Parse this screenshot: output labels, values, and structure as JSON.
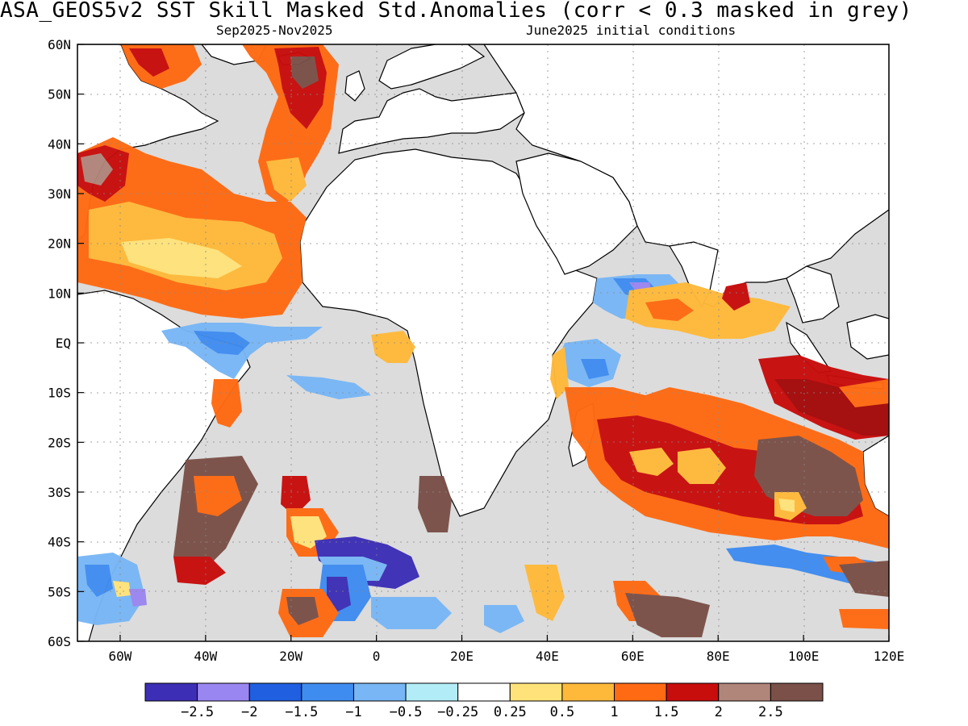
{
  "header": {
    "title": "ASA_GEOS5v2  SST Skill Masked Std.Anomalies (corr < 0.3 masked in grey)",
    "period": "Sep2025-Nov2025",
    "init": "June2025 initial conditions"
  },
  "map": {
    "lon_range": [
      -70,
      120
    ],
    "lat_range": [
      -60,
      60
    ],
    "lat_ticks": [
      {
        "value": 60,
        "label": "60N"
      },
      {
        "value": 50,
        "label": "50N"
      },
      {
        "value": 40,
        "label": "40N"
      },
      {
        "value": 30,
        "label": "30N"
      },
      {
        "value": 20,
        "label": "20N"
      },
      {
        "value": 10,
        "label": "10N"
      },
      {
        "value": 0,
        "label": "EQ"
      },
      {
        "value": -10,
        "label": "10S"
      },
      {
        "value": -20,
        "label": "20S"
      },
      {
        "value": -30,
        "label": "30S"
      },
      {
        "value": -40,
        "label": "40S"
      },
      {
        "value": -50,
        "label": "50S"
      },
      {
        "value": -60,
        "label": "60S"
      }
    ],
    "lon_ticks": [
      {
        "value": -60,
        "label": "60W"
      },
      {
        "value": -40,
        "label": "40W"
      },
      {
        "value": -20,
        "label": "20W"
      },
      {
        "value": 0,
        "label": "0"
      },
      {
        "value": 20,
        "label": "20E"
      },
      {
        "value": 40,
        "label": "40E"
      },
      {
        "value": 60,
        "label": "60E"
      },
      {
        "value": 80,
        "label": "80E"
      },
      {
        "value": 100,
        "label": "100E"
      },
      {
        "value": 120,
        "label": "120E"
      }
    ],
    "mask_color": "#dcdcdc"
  },
  "colorbar": {
    "colors": [
      "#3c2fb5",
      "#9a86f0",
      "#1f5fe0",
      "#3f8cf0",
      "#78b6f5",
      "#b2ecf7",
      "#ffffff",
      "#ffe37a",
      "#ffb93a",
      "#ff6a12",
      "#c80d0d",
      "#b0857a",
      "#7a5048"
    ],
    "labels": [
      "-2.5",
      "-2",
      "-1.5",
      "-1",
      "-0.5",
      "-0.25",
      "0.25",
      "0.5",
      "1",
      "1.5",
      "2",
      "2.5"
    ]
  }
}
